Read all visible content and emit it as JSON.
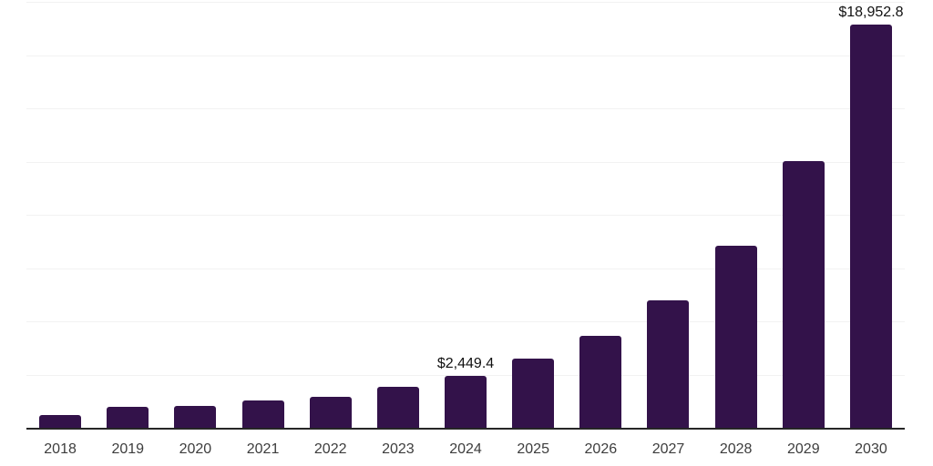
{
  "chart_data": {
    "type": "bar",
    "title": "",
    "categories": [
      "2018",
      "2019",
      "2020",
      "2021",
      "2022",
      "2023",
      "2024",
      "2025",
      "2026",
      "2027",
      "2028",
      "2029",
      "2030"
    ],
    "values": [
      580,
      985,
      1040,
      1300,
      1470,
      1930,
      2449.4,
      3250,
      4320,
      6000,
      8550,
      12530,
      18952.8
    ],
    "data_labels": [
      "",
      "",
      "",
      "",
      "",
      "",
      "$2,449.4",
      "",
      "",
      "",
      "",
      "",
      "$18,952.8"
    ],
    "labeled_points": [
      {
        "category": "2024",
        "label": "$2,449.4",
        "value": 2449.4
      },
      {
        "category": "2030",
        "label": "$18,952.8",
        "value": 18952.8
      }
    ],
    "xlabel": "",
    "ylabel": "",
    "ylim": [
      0,
      20000
    ],
    "grid_step": 2500,
    "grid": "horizontal",
    "y_tick_labels_visible": false,
    "legend_position": "none",
    "colors": {
      "bar": "#33124a",
      "gridline": "#f2f2f2",
      "axis_line": "#262626",
      "tick_label": "#3d3d3d",
      "data_label": "#111111",
      "background": "#ffffff"
    }
  }
}
